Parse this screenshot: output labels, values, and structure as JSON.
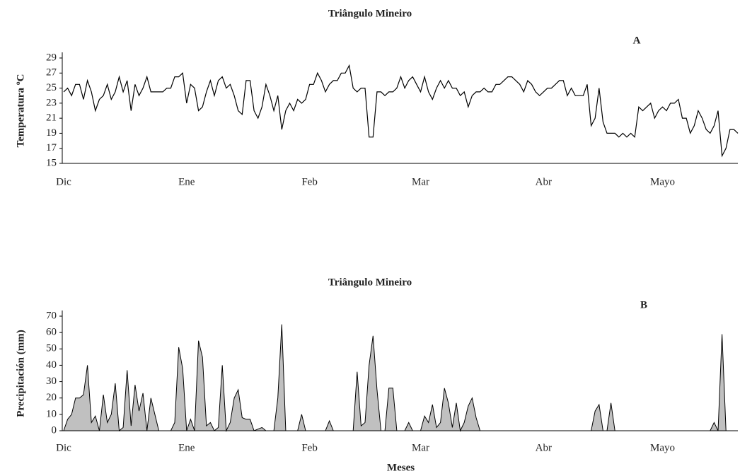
{
  "chart_data": [
    {
      "type": "line",
      "title": "Triângulo Mineiro",
      "annotation": "A",
      "ylabel": "Temperatura ºC",
      "ylim": [
        15,
        29
      ],
      "yticks": [
        15,
        17,
        19,
        21,
        23,
        25,
        27,
        29
      ],
      "color": "#000000",
      "categories": [
        "Dic",
        null,
        null,
        null,
        null,
        null,
        null,
        null,
        null,
        null,
        null,
        null,
        null,
        null,
        null,
        null,
        null,
        null,
        null,
        null,
        null,
        null,
        null,
        null,
        null,
        null,
        null,
        null,
        null,
        null,
        null,
        "Ene",
        null,
        null,
        null,
        null,
        null,
        null,
        null,
        null,
        null,
        null,
        null,
        null,
        null,
        null,
        null,
        null,
        null,
        null,
        null,
        null,
        null,
        null,
        null,
        null,
        null,
        null,
        null,
        null,
        null,
        null,
        "Feb",
        null,
        null,
        null,
        null,
        null,
        null,
        null,
        null,
        null,
        null,
        null,
        null,
        null,
        null,
        null,
        null,
        null,
        null,
        null,
        null,
        null,
        null,
        null,
        null,
        null,
        null,
        null,
        "Mar",
        null,
        null,
        null,
        null,
        null,
        null,
        null,
        null,
        null,
        null,
        null,
        null,
        null,
        null,
        null,
        null,
        null,
        null,
        null,
        null,
        null,
        null,
        null,
        null,
        null,
        null,
        null,
        null,
        null,
        null,
        "Abr",
        null,
        null,
        null,
        null,
        null,
        null,
        null,
        null,
        null,
        null,
        null,
        null,
        null,
        null,
        null,
        null,
        null,
        null,
        null,
        null,
        null,
        null,
        null,
        null,
        null,
        null,
        null,
        null,
        null,
        "Mayo",
        null,
        null,
        null,
        null,
        null,
        null,
        null,
        null,
        null,
        null,
        null,
        null,
        null,
        null,
        null,
        null,
        null,
        null,
        null
      ],
      "values": [
        24.5,
        25,
        24,
        25.5,
        25.5,
        23.5,
        26,
        24.5,
        22,
        23.5,
        24,
        25.5,
        23.5,
        24.5,
        26.5,
        24.5,
        26,
        22,
        25.5,
        24,
        25,
        26.5,
        24.5,
        24.5,
        24.5,
        24.5,
        25,
        25,
        26.5,
        26.5,
        27,
        23,
        25.5,
        25,
        22,
        22.5,
        24.5,
        26,
        24,
        26,
        26.5,
        25,
        25.5,
        24,
        22,
        21.5,
        26,
        26,
        22,
        21,
        22.5,
        25.5,
        24,
        22,
        24,
        19.5,
        22,
        23,
        22,
        23.5,
        23,
        23.5,
        25.5,
        25.5,
        27,
        26,
        24.5,
        25.5,
        26,
        26,
        27,
        27,
        28,
        25,
        24.5,
        25,
        25,
        18.5,
        18.5,
        24.5,
        24.5,
        24,
        24.5,
        24.5,
        25,
        26.5,
        25,
        26,
        26.5,
        25.5,
        24.5,
        26.5,
        24.5,
        23.5,
        25,
        26,
        25,
        26,
        25,
        25,
        24,
        24.5,
        22.5,
        24,
        24.5,
        24.5,
        25,
        24.5,
        24.5,
        25.5,
        25.5,
        26,
        26.5,
        26.5,
        26,
        25.5,
        24.5,
        26,
        25.5,
        24.5,
        24,
        24.5,
        25,
        25,
        25.5,
        26,
        26,
        24,
        25,
        24,
        24,
        24,
        25.5,
        20,
        21,
        25,
        20.5,
        19,
        19,
        19,
        18.5,
        19,
        18.5,
        19,
        18.5,
        22.5,
        22,
        22.5,
        23,
        21,
        22,
        22.5,
        22,
        23,
        23,
        23.5,
        21,
        21,
        19,
        20,
        22,
        21,
        19.5,
        19,
        20,
        22,
        16,
        17,
        19.5,
        19.5,
        19
      ]
    },
    {
      "type": "area",
      "title": "Triângulo Mineiro",
      "annotation": "B",
      "ylabel": "Precipitación (mm)",
      "xlabel": "Meses",
      "ylim": [
        0,
        70
      ],
      "yticks": [
        0,
        10,
        20,
        30,
        40,
        50,
        60,
        70
      ],
      "color": "#c0c0c0",
      "categories": [
        "Dic",
        null,
        null,
        null,
        null,
        null,
        null,
        null,
        null,
        null,
        null,
        null,
        null,
        null,
        null,
        null,
        null,
        null,
        null,
        null,
        null,
        null,
        null,
        null,
        null,
        null,
        null,
        null,
        null,
        null,
        null,
        "Ene",
        null,
        null,
        null,
        null,
        null,
        null,
        null,
        null,
        null,
        null,
        null,
        null,
        null,
        null,
        null,
        null,
        null,
        null,
        null,
        null,
        null,
        null,
        null,
        null,
        null,
        null,
        null,
        null,
        null,
        null,
        "Feb",
        null,
        null,
        null,
        null,
        null,
        null,
        null,
        null,
        null,
        null,
        null,
        null,
        null,
        null,
        null,
        null,
        null,
        null,
        null,
        null,
        null,
        null,
        null,
        null,
        null,
        null,
        null,
        "Mar",
        null,
        null,
        null,
        null,
        null,
        null,
        null,
        null,
        null,
        null,
        null,
        null,
        null,
        null,
        null,
        null,
        null,
        null,
        null,
        null,
        null,
        null,
        null,
        null,
        null,
        null,
        null,
        null,
        null,
        null,
        "Abr",
        null,
        null,
        null,
        null,
        null,
        null,
        null,
        null,
        null,
        null,
        null,
        null,
        null,
        null,
        null,
        null,
        null,
        null,
        null,
        null,
        null,
        null,
        null,
        null,
        null,
        null,
        null,
        null,
        null,
        "Mayo",
        null,
        null,
        null,
        null,
        null,
        null,
        null,
        null,
        null,
        null,
        null,
        null,
        null,
        null,
        null,
        null,
        null,
        null,
        null
      ],
      "values": [
        0,
        7,
        10,
        20,
        20,
        22,
        40,
        5,
        9,
        0,
        22,
        5,
        10,
        29,
        0,
        2,
        37,
        3,
        28,
        12,
        23,
        0,
        20,
        10,
        0,
        0,
        0,
        0,
        5,
        51,
        38,
        0,
        7,
        0,
        55,
        45,
        3,
        5,
        0,
        2,
        40,
        0,
        5,
        20,
        25,
        8,
        7,
        7,
        0,
        1,
        2,
        0,
        0,
        0,
        20,
        65,
        0,
        0,
        0,
        0,
        10,
        0,
        0,
        0,
        0,
        0,
        0,
        6,
        0,
        0,
        0,
        0,
        0,
        0,
        36,
        3,
        5,
        40,
        58,
        25,
        0,
        0,
        26,
        26,
        0,
        0,
        0,
        5,
        0,
        0,
        0,
        9,
        5,
        16,
        2,
        5,
        26,
        17,
        2,
        17,
        0,
        5,
        15,
        20,
        8,
        0,
        0,
        0,
        0,
        0,
        0,
        0,
        0,
        0,
        0,
        0,
        0,
        0,
        0,
        0,
        0,
        0,
        0,
        0,
        0,
        0,
        0,
        0,
        0,
        0,
        0,
        0,
        0,
        0,
        12,
        16,
        0,
        0,
        17,
        0,
        0,
        0,
        0,
        0,
        0,
        0,
        0,
        0,
        0,
        0,
        0,
        0,
        0,
        0,
        0,
        0,
        0,
        0,
        0,
        0,
        0,
        0,
        0,
        0,
        5,
        0,
        59,
        0,
        0,
        0,
        0
      ]
    }
  ]
}
